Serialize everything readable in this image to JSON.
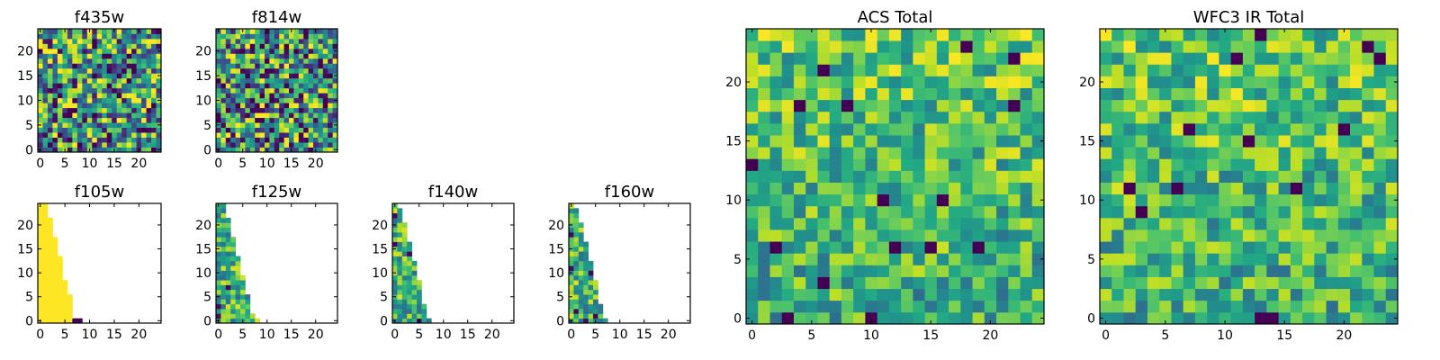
{
  "chart_data": [
    {
      "type": "heatmap",
      "title": "f435w",
      "colormap": "viridis",
      "grid_size": [
        25,
        25
      ],
      "fill": "full",
      "xticks": [
        0,
        5,
        10,
        15,
        20
      ],
      "yticks": [
        0,
        5,
        10,
        15,
        20
      ],
      "xlim": [
        -0.5,
        24.5
      ],
      "ylim": [
        -0.5,
        24.5
      ]
    },
    {
      "type": "heatmap",
      "title": "f814w",
      "colormap": "viridis",
      "grid_size": [
        25,
        25
      ],
      "fill": "full",
      "xticks": [
        0,
        5,
        10,
        15,
        20
      ],
      "yticks": [
        0,
        5,
        10,
        15,
        20
      ],
      "xlim": [
        -0.5,
        24.5
      ],
      "ylim": [
        -0.5,
        24.5
      ]
    },
    {
      "type": "heatmap",
      "title": "f105w",
      "colormap": "viridis",
      "grid_size": [
        25,
        25
      ],
      "fill": "lower-left triangle",
      "row_widths": [
        9,
        7,
        7,
        7,
        7,
        7,
        6,
        6,
        6,
        5,
        5,
        5,
        5,
        5,
        4,
        4,
        4,
        4,
        3,
        3,
        3,
        3,
        2,
        2,
        2
      ],
      "xticks": [
        0,
        5,
        10,
        15,
        20
      ],
      "yticks": [
        0,
        5,
        10,
        15,
        20
      ],
      "xlim": [
        -0.5,
        24.5
      ],
      "ylim": [
        -0.5,
        24.5
      ]
    },
    {
      "type": "heatmap",
      "title": "f125w",
      "colormap": "viridis",
      "grid_size": [
        25,
        25
      ],
      "fill": "lower-left triangle",
      "row_widths": [
        9,
        8,
        7,
        7,
        7,
        7,
        6,
        6,
        6,
        6,
        5,
        5,
        5,
        5,
        4,
        4,
        4,
        4,
        3,
        3,
        3,
        3,
        2,
        2,
        2
      ],
      "xticks": [
        0,
        5,
        10,
        15,
        20
      ],
      "yticks": [
        0,
        5,
        10,
        15,
        20
      ],
      "xlim": [
        -0.5,
        24.5
      ],
      "ylim": [
        -0.5,
        24.5
      ]
    },
    {
      "type": "heatmap",
      "title": "f140w",
      "colormap": "viridis",
      "grid_size": [
        25,
        25
      ],
      "fill": "lower-left triangle",
      "row_widths": [
        8,
        7,
        7,
        7,
        6,
        6,
        6,
        6,
        6,
        5,
        5,
        5,
        5,
        4,
        4,
        4,
        4,
        3,
        3,
        3,
        3,
        2,
        2,
        2,
        1
      ],
      "xticks": [
        0,
        5,
        10,
        15,
        20
      ],
      "yticks": [
        0,
        5,
        10,
        15,
        20
      ],
      "xlim": [
        -0.5,
        24.5
      ],
      "ylim": [
        -0.5,
        24.5
      ]
    },
    {
      "type": "heatmap",
      "title": "f160w",
      "colormap": "viridis",
      "grid_size": [
        25,
        25
      ],
      "fill": "lower-left triangle",
      "row_widths": [
        8,
        7,
        7,
        7,
        6,
        6,
        6,
        6,
        6,
        5,
        5,
        5,
        5,
        4,
        4,
        4,
        4,
        3,
        3,
        3,
        3,
        2,
        2,
        2,
        1
      ],
      "xticks": [
        0,
        5,
        10,
        15,
        20
      ],
      "yticks": [
        0,
        5,
        10,
        15,
        20
      ],
      "xlim": [
        -0.5,
        24.5
      ],
      "ylim": [
        -0.5,
        24.5
      ]
    },
    {
      "type": "heatmap",
      "title": "ACS Total",
      "colormap": "viridis",
      "grid_size": [
        25,
        25
      ],
      "fill": "full",
      "xticks": [
        0,
        5,
        10,
        15,
        20
      ],
      "yticks": [
        0,
        5,
        10,
        15,
        20
      ],
      "xlim": [
        -0.5,
        24.5
      ],
      "ylim": [
        -0.5,
        24.5
      ]
    },
    {
      "type": "heatmap",
      "title": "WFC3 IR Total",
      "colormap": "viridis",
      "grid_size": [
        25,
        25
      ],
      "fill": "full",
      "xticks": [
        0,
        5,
        10,
        15,
        20
      ],
      "yticks": [
        0,
        5,
        10,
        15,
        20
      ],
      "xlim": [
        -0.5,
        24.5
      ],
      "ylim": [
        -0.5,
        24.5
      ]
    }
  ]
}
